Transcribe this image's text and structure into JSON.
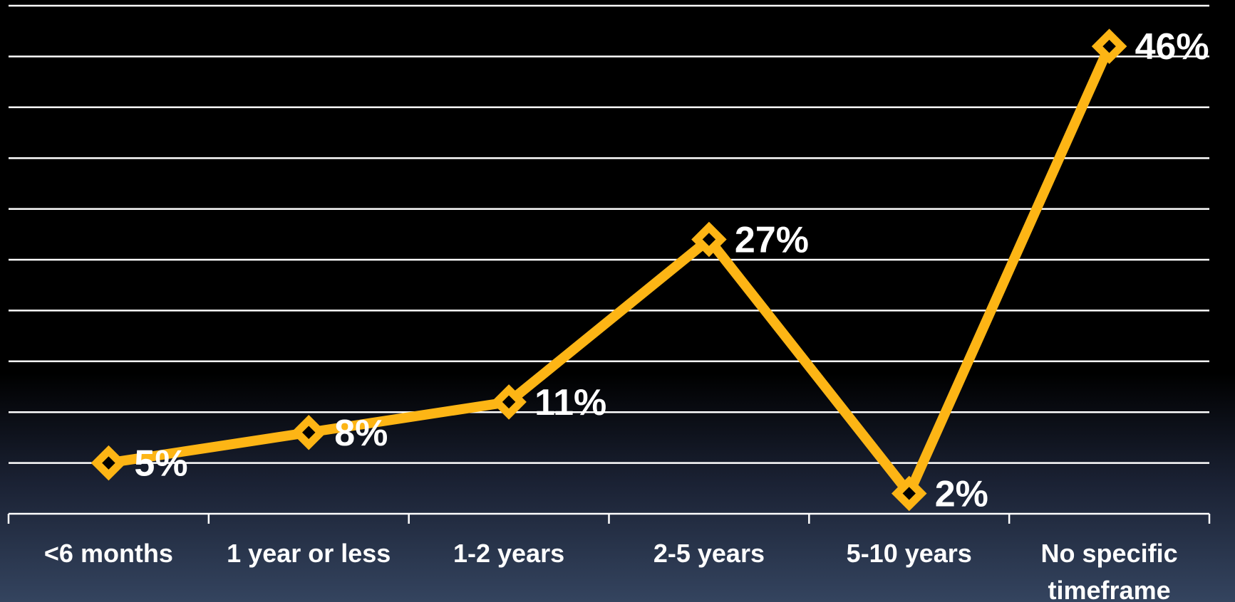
{
  "chart_data": {
    "type": "line",
    "categories": [
      "<6 months",
      "1 year or less",
      "1-2 years",
      "2-5 years",
      "5-10 years",
      "No specific timeframe"
    ],
    "series": [
      {
        "values": [
          5,
          8,
          11,
          27,
          2,
          46
        ],
        "color": "#fdb515",
        "marker": "diamond",
        "data_labels": [
          "5%",
          "8%",
          "11%",
          "27%",
          "2%",
          "46%"
        ]
      }
    ],
    "ylim": [
      0,
      50
    ],
    "y_gridline_step": 5,
    "grid": true,
    "show_y_axis_labels": false,
    "colors": {
      "gridline": "#ffffff",
      "text": "#ffffff",
      "line": "#fdb515"
    }
  }
}
